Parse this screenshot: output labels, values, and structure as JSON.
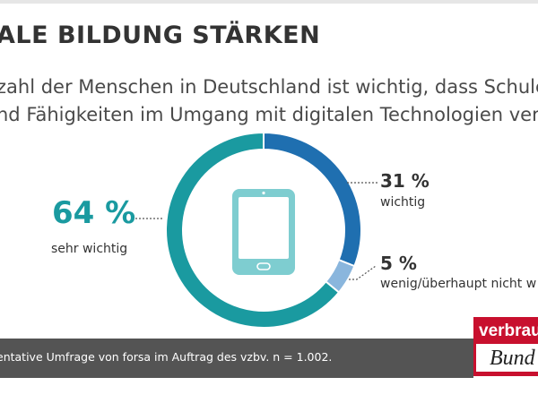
{
  "title": "ALE BILDUNG STÄRKEN",
  "subtitle_line1": "zahl der Menschen in Deutschland ist wichtig, dass Schulen",
  "subtitle_line2": "nd Fähigkeiten im Umgang mit digitalen Technologien verm",
  "footer_text": "entative Umfrage von forsa im Auftrag des vzbv. n = 1.002.",
  "logo": {
    "word": "verbrau",
    "script": "Bund"
  },
  "icon": "tablet-icon",
  "colors": {
    "sehr_wichtig": "#1a9aa0",
    "wichtig": "#1f6fb0",
    "wenig": "#8ab6dd",
    "icon": "#7ecdd0",
    "footer": "#545454",
    "brand": "#c8102e"
  },
  "chart_data": {
    "type": "pie",
    "donut": true,
    "slices": [
      {
        "label": "sehr wichtig",
        "value": 64,
        "value_label": "64 %"
      },
      {
        "label": "wichtig",
        "value": 31,
        "value_label": "31 %"
      },
      {
        "label": "wenig/überhaupt nicht w",
        "value": 5,
        "value_label": "5 %"
      }
    ]
  }
}
